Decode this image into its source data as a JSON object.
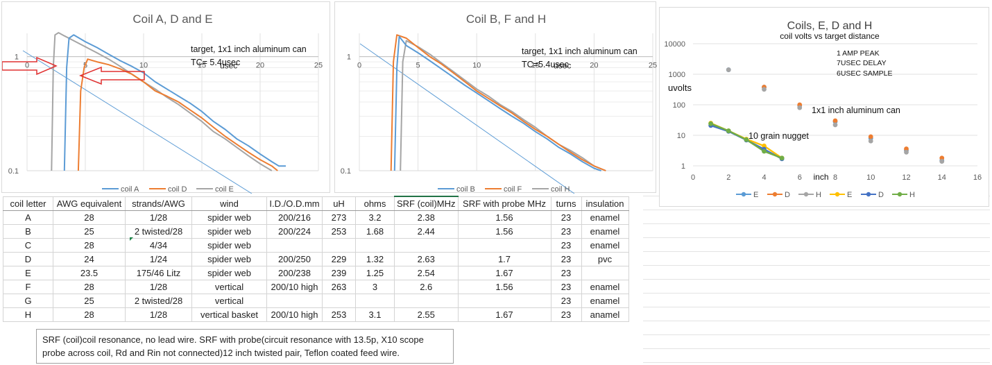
{
  "chart_data": [
    {
      "type": "line",
      "title": "Coil A, D and E",
      "annotation_lines": [
        "target, 1x1 inch aluminum can",
        "TC= 5.4usec"
      ],
      "x_unit_label": "usec",
      "x_ticks": [
        "0",
        "5",
        "10",
        "15",
        "20",
        "25"
      ],
      "y_ticks": [
        "1",
        "0.1"
      ],
      "y_scale": "log",
      "xlim": [
        0,
        25
      ],
      "ylim": [
        0.1,
        1.6
      ],
      "legend": "bottom",
      "colors": {
        "coil A": "#5b9bd5",
        "coil D": "#ed7d31",
        "coil E": "#a5a5a5",
        "trend": "#5b9bd5",
        "arrow": "#e03030"
      },
      "series": [
        {
          "name": "coil A",
          "x": [
            3.2,
            3.4,
            3.6,
            4,
            5,
            6,
            7,
            8,
            9,
            10,
            11,
            12,
            13,
            14,
            15,
            16,
            17,
            18,
            19,
            20,
            21,
            21.6,
            22.2
          ],
          "y": [
            0.1,
            0.8,
            1.45,
            1.55,
            1.35,
            1.2,
            1.05,
            0.92,
            0.82,
            0.72,
            0.6,
            0.52,
            0.45,
            0.39,
            0.33,
            0.27,
            0.23,
            0.19,
            0.165,
            0.14,
            0.12,
            0.11,
            0.11
          ]
        },
        {
          "name": "coil D",
          "x": [
            4.4,
            4.6,
            4.9,
            5.2,
            6,
            7,
            8,
            9,
            10,
            11,
            12,
            13,
            14,
            15,
            16,
            17,
            18,
            19,
            20,
            21,
            21.5
          ],
          "y": [
            0.1,
            0.5,
            0.8,
            0.95,
            0.9,
            0.85,
            0.78,
            0.7,
            0.6,
            0.5,
            0.45,
            0.4,
            0.34,
            0.29,
            0.24,
            0.2,
            0.17,
            0.145,
            0.125,
            0.11,
            0.1
          ]
        },
        {
          "name": "coil E",
          "x": [
            2.1,
            2.25,
            2.4,
            2.7,
            3.2,
            4,
            5,
            6,
            7,
            8,
            9,
            10,
            11,
            12,
            13,
            14,
            15,
            16,
            17,
            18,
            19,
            20,
            21
          ],
          "y": [
            0.1,
            0.8,
            1.55,
            1.62,
            1.52,
            1.38,
            1.22,
            1.08,
            0.95,
            0.82,
            0.7,
            0.6,
            0.52,
            0.44,
            0.38,
            0.32,
            0.27,
            0.22,
            0.19,
            0.16,
            0.135,
            0.115,
            0.1
          ]
        }
      ]
    },
    {
      "type": "line",
      "title": "Coil B, F and H",
      "annotation_lines": [
        "target, 1x1 inch aluminum can",
        "TC=5.4usec"
      ],
      "x_unit_label": "usec",
      "x_ticks": [
        "0",
        "5",
        "10",
        "15",
        "20",
        "25"
      ],
      "y_ticks": [
        "1",
        "0.1"
      ],
      "y_scale": "log",
      "xlim": [
        0,
        25
      ],
      "ylim": [
        0.1,
        1.6
      ],
      "legend": "bottom",
      "colors": {
        "coil B": "#5b9bd5",
        "coil F": "#ed7d31",
        "coil H": "#a5a5a5",
        "trend": "#5b9bd5"
      },
      "series": [
        {
          "name": "coil B",
          "x": [
            3.0,
            3.2,
            3.4,
            4,
            5,
            6,
            7,
            8,
            9,
            10,
            11,
            12,
            13,
            14,
            15,
            16,
            17,
            18,
            19,
            20,
            20.6
          ],
          "y": [
            0.1,
            0.8,
            1.5,
            1.25,
            1.08,
            0.92,
            0.78,
            0.66,
            0.56,
            0.48,
            0.41,
            0.35,
            0.3,
            0.26,
            0.22,
            0.19,
            0.16,
            0.14,
            0.12,
            0.105,
            0.1
          ]
        },
        {
          "name": "coil F",
          "x": [
            2.7,
            2.9,
            3.2,
            4,
            5,
            6,
            7,
            8,
            9,
            10,
            11,
            12,
            13,
            14,
            15,
            16,
            17,
            18,
            19,
            20,
            21
          ],
          "y": [
            0.1,
            0.9,
            1.55,
            1.45,
            1.2,
            1.0,
            0.86,
            0.72,
            0.6,
            0.5,
            0.43,
            0.37,
            0.32,
            0.27,
            0.23,
            0.2,
            0.17,
            0.145,
            0.125,
            0.11,
            0.1
          ]
        },
        {
          "name": "coil H",
          "x": [
            3.5,
            3.7,
            4,
            5,
            6,
            7,
            8,
            9,
            10,
            11,
            12,
            13,
            14,
            15,
            16,
            17,
            18,
            19,
            20,
            21
          ],
          "y": [
            0.1,
            0.9,
            1.38,
            1.22,
            1.05,
            0.88,
            0.74,
            0.62,
            0.52,
            0.45,
            0.38,
            0.33,
            0.28,
            0.24,
            0.2,
            0.17,
            0.15,
            0.13,
            0.11,
            0.1
          ]
        }
      ]
    },
    {
      "type": "scatter",
      "title": "Coils, E, D and H",
      "subtitle": "coil volts vs target distance",
      "ylabel": "uvolts",
      "xlabel": "inch",
      "annotation_lines": [
        "1 AMP PEAK",
        "7USEC DELAY",
        "6USEC SAMPLE"
      ],
      "label_can": "1x1 inch aluminum can",
      "label_nugget": "10 grain nugget",
      "x_ticks": [
        "0",
        "2",
        "4",
        "6",
        "8",
        "10",
        "12",
        "14",
        "16"
      ],
      "y_ticks": [
        "10000",
        "1000",
        "100",
        "10",
        "1"
      ],
      "y_scale": "log",
      "xlim": [
        0,
        16
      ],
      "ylim": [
        1,
        10000
      ],
      "grid": true,
      "legend": "bottom",
      "series": [
        {
          "name": "E",
          "color": "#5b9bd5",
          "marker": true,
          "line": false,
          "x": [
            2,
            4,
            6,
            8,
            10,
            12,
            14
          ],
          "y": [
            1400,
            380,
            95,
            28,
            8,
            3.2,
            1.5
          ]
        },
        {
          "name": "D",
          "color": "#ed7d31",
          "marker": true,
          "line": false,
          "x": [
            4,
            6,
            8,
            10,
            12,
            14
          ],
          "y": [
            380,
            100,
            30,
            9,
            3.6,
            1.8
          ]
        },
        {
          "name": "H",
          "color": "#a5a5a5",
          "marker": true,
          "line": false,
          "x": [
            2,
            4,
            6,
            8,
            10,
            12,
            14
          ],
          "y": [
            1400,
            320,
            80,
            22,
            6.5,
            2.8,
            1.4
          ]
        },
        {
          "name": "E",
          "color": "#ffc000",
          "marker": true,
          "line": true,
          "x": [
            1,
            2,
            3,
            4,
            5
          ],
          "y": [
            25,
            14,
            7.5,
            4.5,
            1.8
          ]
        },
        {
          "name": "D",
          "color": "#4472c4",
          "marker": true,
          "line": true,
          "x": [
            1,
            2,
            3,
            4,
            5
          ],
          "y": [
            21,
            13.5,
            7,
            3.5,
            1.7
          ]
        },
        {
          "name": "H",
          "color": "#70ad47",
          "marker": true,
          "line": true,
          "x": [
            1,
            2,
            3,
            4,
            5
          ],
          "y": [
            24,
            14,
            7.2,
            3,
            1.8
          ]
        }
      ]
    }
  ],
  "table": {
    "headers": [
      "coil letter",
      "AWG equivalent",
      "strands/AWG",
      "wind",
      "I.D./O.D.mm",
      "uH",
      "ohms",
      "SRF (coil)MHz",
      "SRF with probe MHz",
      "turns",
      "insulation"
    ],
    "rows": [
      [
        "A",
        "28",
        "1/28",
        "spider web",
        "200/216",
        "273",
        "3.2",
        "2.38",
        "1.56",
        "23",
        "enamel"
      ],
      [
        "B",
        "25",
        "2 twisted/28",
        "spider web",
        "200/224",
        "253",
        "1.68",
        "2.44",
        "1.56",
        "23",
        "enamel"
      ],
      [
        "C",
        "28",
        "4/34",
        "spider web",
        "",
        "",
        "",
        "",
        "",
        "23",
        "enamel"
      ],
      [
        "D",
        "24",
        "1/24",
        "spider web",
        "200/250",
        "229",
        "1.32",
        "2.63",
        "1.7",
        "23",
        "pvc"
      ],
      [
        "E",
        "23.5",
        "175/46 Litz",
        "spider web",
        "200/238",
        "239",
        "1.25",
        "2.54",
        "1.67",
        "23",
        ""
      ],
      [
        "F",
        "28",
        "1/28",
        "vertical",
        "200/10 high",
        "263",
        "3",
        "2.6",
        "1.56",
        "23",
        "enamel"
      ],
      [
        "G",
        "25",
        "2 twisted/28",
        "vertical",
        "",
        "",
        "",
        "",
        "",
        "23",
        "enamel"
      ],
      [
        "H",
        "28",
        "1/28",
        "vertical basket",
        "200/10 high",
        "253",
        "3.1",
        "2.55",
        "1.67",
        "23",
        "anamel"
      ]
    ]
  },
  "note": {
    "line1": "SRF (coil)coil resonance, no lead wire.   SRF with probe(circuit resonance with 13.5p, X10 scope",
    "line2": "probe across coil, Rd and Rin not connected)12 inch twisted pair, Teflon coated feed wire."
  }
}
